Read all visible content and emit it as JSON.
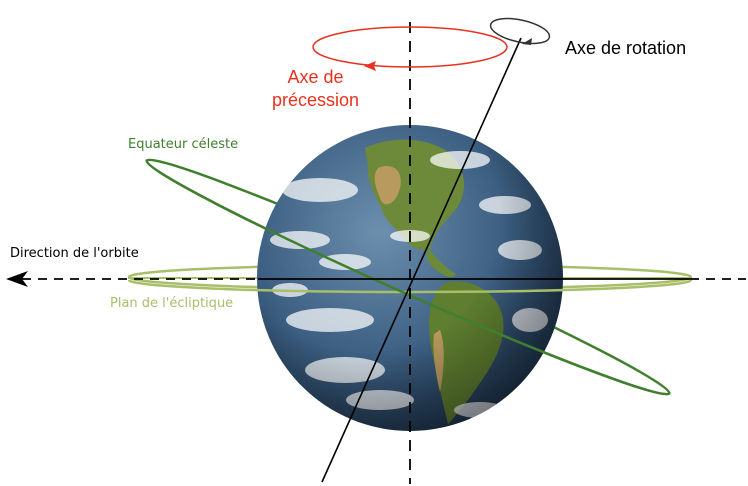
{
  "labels": {
    "rotation_axis": "Axe de rotation",
    "precession_axis_line1": "Axe de",
    "precession_axis_line2": "précession",
    "celestial_equator": "Equateur céleste",
    "orbit_direction": "Direction de l'orbite",
    "ecliptic_plane": "Plan de l'écliptique"
  },
  "colors": {
    "rotation_axis": "#000000",
    "precession": "#e8321e",
    "celestial_equator": "#3f7f2e",
    "ecliptic_plane": "#a8bf6a",
    "orbit_direction": "#000000",
    "ocean": "#2f5678",
    "land": "#6d8a3a",
    "desert": "#b99a5e",
    "clouds": "#ffffff"
  },
  "icons": {
    "earth": "earth-globe",
    "orbit_arrow": "arrow-left"
  }
}
